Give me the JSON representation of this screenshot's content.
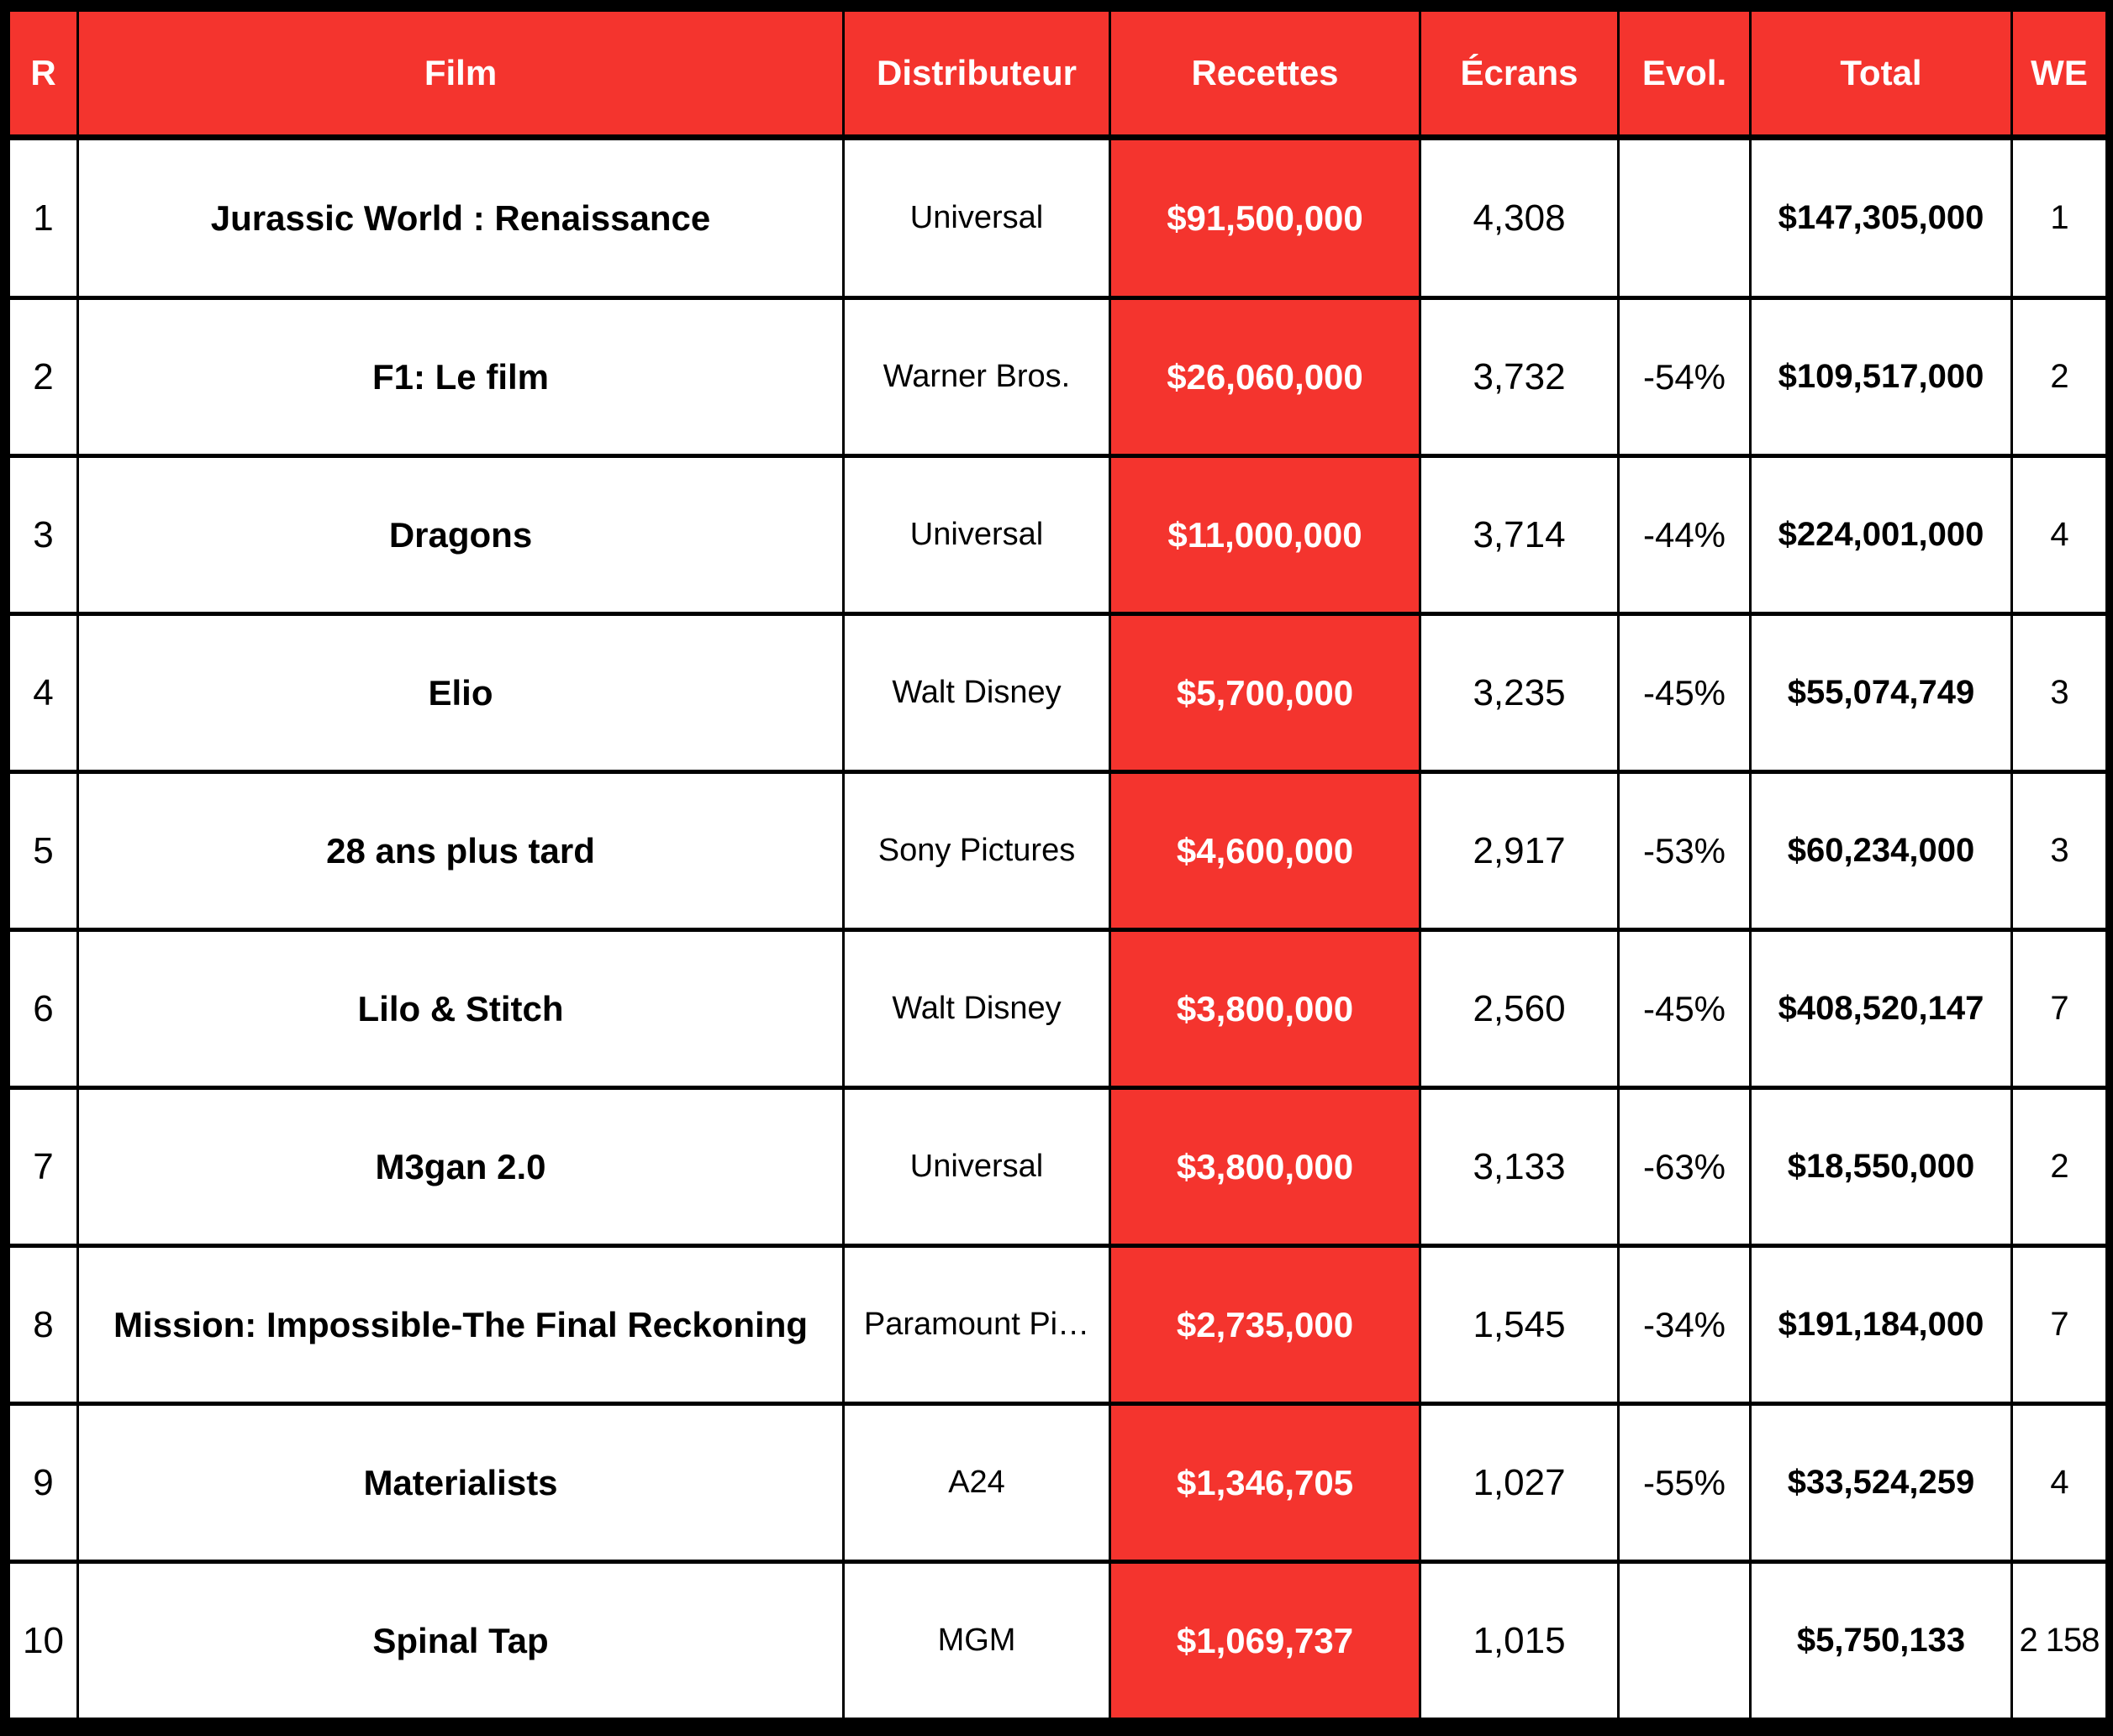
{
  "colors": {
    "accent": "#f4342e",
    "grid": "#000000",
    "cell_background": "#ffffff",
    "header_text": "#ffffff",
    "body_text": "#000000"
  },
  "table": {
    "columns": [
      {
        "key": "rank",
        "label": "R"
      },
      {
        "key": "film",
        "label": "Film"
      },
      {
        "key": "distributor",
        "label": "Distributeur"
      },
      {
        "key": "gross",
        "label": "Recettes"
      },
      {
        "key": "screens",
        "label": "Écrans"
      },
      {
        "key": "evolution",
        "label": "Evol."
      },
      {
        "key": "total",
        "label": "Total"
      },
      {
        "key": "weekend",
        "label": "WE"
      }
    ],
    "rows": [
      {
        "rank": "1",
        "film": "Jurassic World : Renaissance",
        "distributor": "Universal",
        "gross": "$91,500,000",
        "screens": "4,308",
        "evolution": "",
        "total": "$147,305,000",
        "weekend": "1"
      },
      {
        "rank": "2",
        "film": "F1: Le film",
        "distributor": "Warner Bros.",
        "gross": "$26,060,000",
        "screens": "3,732",
        "evolution": "-54%",
        "total": "$109,517,000",
        "weekend": "2"
      },
      {
        "rank": "3",
        "film": "Dragons",
        "distributor": "Universal",
        "gross": "$11,000,000",
        "screens": "3,714",
        "evolution": "-44%",
        "total": "$224,001,000",
        "weekend": "4"
      },
      {
        "rank": "4",
        "film": "Elio",
        "distributor": "Walt Disney",
        "gross": "$5,700,000",
        "screens": "3,235",
        "evolution": "-45%",
        "total": "$55,074,749",
        "weekend": "3"
      },
      {
        "rank": "5",
        "film": "28 ans plus tard",
        "distributor": "Sony Pictures",
        "gross": "$4,600,000",
        "screens": "2,917",
        "evolution": "-53%",
        "total": "$60,234,000",
        "weekend": "3"
      },
      {
        "rank": "6",
        "film": "Lilo & Stitch",
        "distributor": "Walt Disney",
        "gross": "$3,800,000",
        "screens": "2,560",
        "evolution": "-45%",
        "total": "$408,520,147",
        "weekend": "7"
      },
      {
        "rank": "7",
        "film": "M3gan 2.0",
        "distributor": "Universal",
        "gross": "$3,800,000",
        "screens": "3,133",
        "evolution": "-63%",
        "total": "$18,550,000",
        "weekend": "2"
      },
      {
        "rank": "8",
        "film": "Mission: Impossible-The Final Reckoning",
        "distributor": "Paramount Pi…",
        "gross": "$2,735,000",
        "screens": "1,545",
        "evolution": "-34%",
        "total": "$191,184,000",
        "weekend": "7"
      },
      {
        "rank": "9",
        "film": "Materialists",
        "distributor": "A24",
        "gross": "$1,346,705",
        "screens": "1,027",
        "evolution": "-55%",
        "total": "$33,524,259",
        "weekend": "4"
      },
      {
        "rank": "10",
        "film": "Spinal Tap",
        "distributor": "MGM",
        "gross": "$1,069,737",
        "screens": "1,015",
        "evolution": "",
        "total": "$5,750,133",
        "weekend": "2 158"
      }
    ]
  }
}
